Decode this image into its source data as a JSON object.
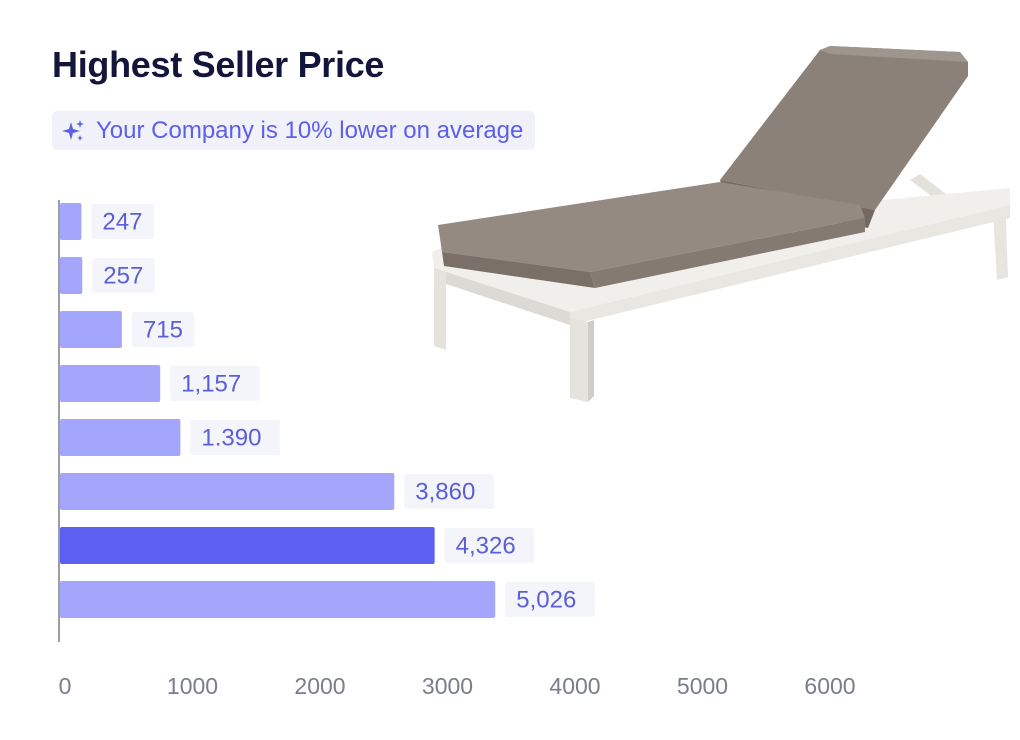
{
  "header": {
    "title": "Highest Seller Price",
    "insight": "Your Company is 10% lower on average",
    "insight_icon": "sparkle-icon"
  },
  "product_image": {
    "icon": "sun-lounger-image"
  },
  "colors": {
    "bar": "#a4a6fb",
    "highlight_bar": "#5c60f0",
    "label_text": "#5a5fd6",
    "label_bg": "#f4f4fb",
    "axis": "#7a7d8c"
  },
  "chart_data": {
    "type": "bar",
    "orientation": "horizontal",
    "title": "Highest Seller Price",
    "values": [
      247,
      257,
      715,
      1157,
      1390,
      3860,
      4326,
      5026
    ],
    "labels": [
      "247",
      "257",
      "715",
      "1,157",
      "1.390",
      "3,860",
      "4,326",
      "5,026"
    ],
    "highlight_index": 6,
    "xlim": [
      0,
      6000
    ],
    "xticks": [
      0,
      1000,
      2000,
      3000,
      4000,
      5000,
      6000
    ],
    "tick_labels": [
      "0",
      "1000",
      "2000",
      "3000",
      "4000",
      "5000",
      "6000"
    ],
    "grid": false
  }
}
